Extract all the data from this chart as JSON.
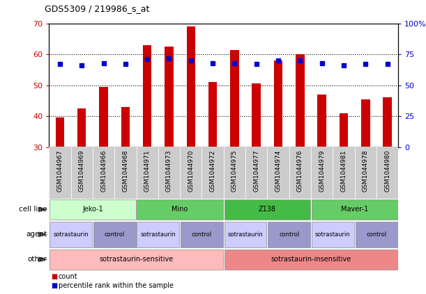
{
  "title": "GDS5309 / 219986_s_at",
  "samples": [
    "GSM1044967",
    "GSM1044969",
    "GSM1044966",
    "GSM1044968",
    "GSM1044971",
    "GSM1044973",
    "GSM1044970",
    "GSM1044972",
    "GSM1044975",
    "GSM1044977",
    "GSM1044974",
    "GSM1044976",
    "GSM1044979",
    "GSM1044981",
    "GSM1044978",
    "GSM1044980"
  ],
  "counts": [
    39.5,
    42.5,
    49.5,
    43.0,
    63.0,
    62.5,
    69.0,
    51.0,
    61.5,
    50.5,
    58.0,
    60.0,
    47.0,
    41.0,
    45.5,
    46.0
  ],
  "percentiles": [
    67,
    66,
    68,
    67,
    71,
    72,
    70,
    68,
    68,
    67,
    70,
    70,
    68,
    66,
    67,
    67
  ],
  "ylim_left": [
    30,
    70
  ],
  "ylim_right": [
    0,
    100
  ],
  "yticks_left": [
    30,
    40,
    50,
    60,
    70
  ],
  "yticks_right": [
    0,
    25,
    50,
    75,
    100
  ],
  "ytick_right_labels": [
    "0",
    "25",
    "50",
    "75",
    "100%"
  ],
  "bar_color": "#CC0000",
  "dot_color": "#0000CC",
  "cell_lines": [
    {
      "label": "Jeko-1",
      "start": 0,
      "end": 4,
      "color": "#ccffcc"
    },
    {
      "label": "Mino",
      "start": 4,
      "end": 8,
      "color": "#66cc66"
    },
    {
      "label": "Z138",
      "start": 8,
      "end": 12,
      "color": "#44bb44"
    },
    {
      "label": "Maver-1",
      "start": 12,
      "end": 16,
      "color": "#66cc66"
    }
  ],
  "agents": [
    {
      "label": "sotrastaurin",
      "start": 0,
      "end": 2,
      "color": "#ccccff"
    },
    {
      "label": "control",
      "start": 2,
      "end": 4,
      "color": "#9999cc"
    },
    {
      "label": "sotrastaurin",
      "start": 4,
      "end": 6,
      "color": "#ccccff"
    },
    {
      "label": "control",
      "start": 6,
      "end": 8,
      "color": "#9999cc"
    },
    {
      "label": "sotrastaurin",
      "start": 8,
      "end": 10,
      "color": "#ccccff"
    },
    {
      "label": "control",
      "start": 10,
      "end": 12,
      "color": "#9999cc"
    },
    {
      "label": "sotrastaurin",
      "start": 12,
      "end": 14,
      "color": "#ccccff"
    },
    {
      "label": "control",
      "start": 14,
      "end": 16,
      "color": "#9999cc"
    }
  ],
  "others": [
    {
      "label": "sotrastaurin-sensitive",
      "start": 0,
      "end": 8,
      "color": "#ffbbbb"
    },
    {
      "label": "sotrastaurin-insensitive",
      "start": 8,
      "end": 16,
      "color": "#ee8888"
    }
  ],
  "legend_count": "count",
  "legend_percentile": "percentile rank within the sample",
  "bar_width": 0.4,
  "left_tick_color": "#CC0000",
  "right_tick_color": "#0000CC",
  "xtick_bg": "#cccccc"
}
